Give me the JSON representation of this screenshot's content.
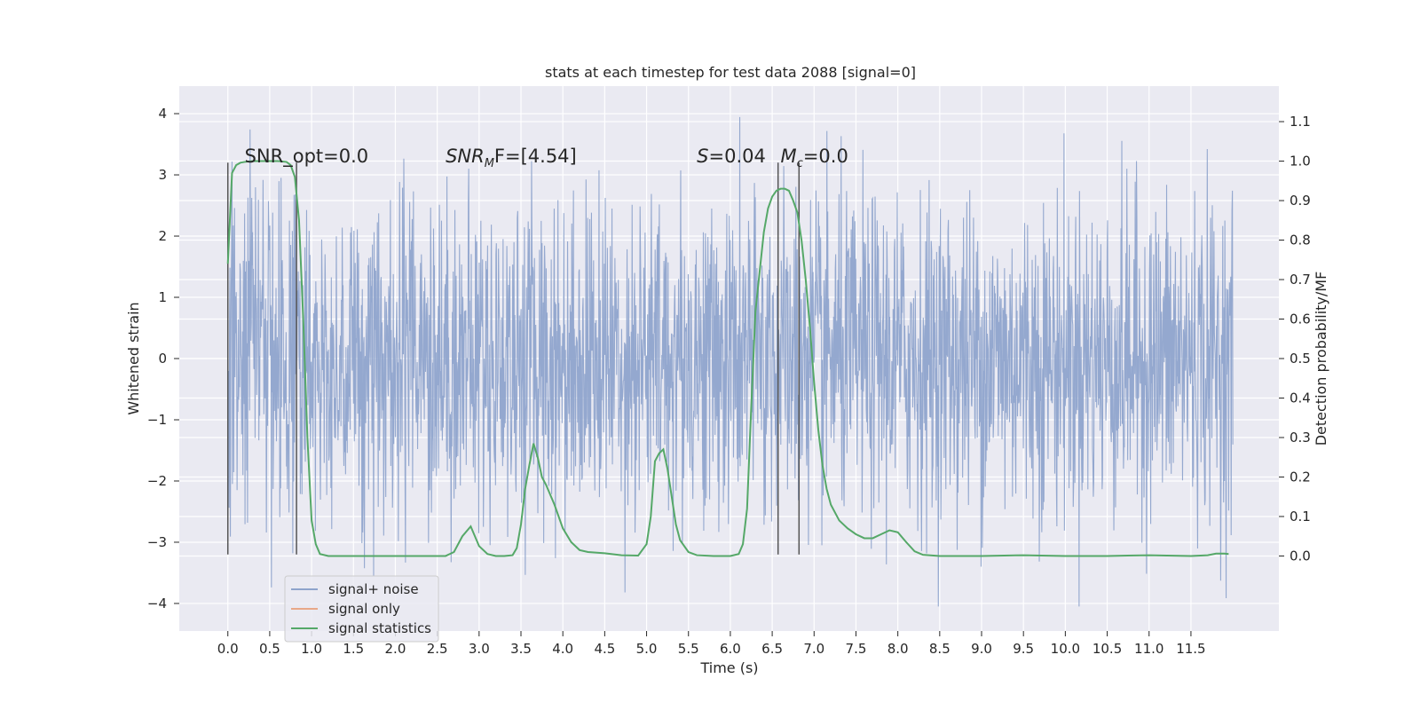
{
  "chart_data": {
    "type": "line",
    "title": "stats at each timestep for test data 2088 [signal=0]",
    "xlabel": "Time (s)",
    "ylabel_left": "Whitened strain",
    "ylabel_right": "Detection probability/MF",
    "xlim": [
      -0.58,
      12.55
    ],
    "ylim_left": [
      -4.45,
      4.45
    ],
    "ylim_right": [
      -0.19,
      1.19
    ],
    "x_ticks": [
      0.0,
      0.5,
      1.0,
      1.5,
      2.0,
      2.5,
      3.0,
      3.5,
      4.0,
      4.5,
      5.0,
      5.5,
      6.0,
      6.5,
      7.0,
      7.5,
      8.0,
      8.5,
      9.0,
      9.5,
      10.0,
      10.5,
      11.0,
      11.5
    ],
    "x_tick_labels": [
      "0.0",
      "0.5",
      "1.0",
      "1.5",
      "2.0",
      "2.5",
      "3.0",
      "3.5",
      "4.0",
      "4.5",
      "5.0",
      "5.5",
      "6.0",
      "6.5",
      "7.0",
      "7.5",
      "8.0",
      "8.5",
      "9.0",
      "9.5",
      "10.0",
      "10.5",
      "11.0",
      "11.5"
    ],
    "y_left_ticks": [
      4,
      3,
      2,
      1,
      0,
      -1,
      -2,
      -3,
      -4
    ],
    "y_left_tick_labels": [
      "4",
      "3",
      "2",
      "1",
      "0",
      "−1",
      "−2",
      "−3",
      "−4"
    ],
    "y_right_ticks": [
      1.1,
      1.0,
      0.9,
      0.8,
      0.7,
      0.6,
      0.5,
      0.4,
      0.3,
      0.2,
      0.1,
      0.0
    ],
    "y_right_tick_labels": [
      "1.1",
      "1.0",
      "0.9",
      "0.8",
      "0.7",
      "0.6",
      "0.5",
      "0.4",
      "0.3",
      "0.2",
      "0.1",
      "0.0"
    ],
    "grid": true,
    "legend_position": "lower-left",
    "series": [
      {
        "name": "signal+ noise",
        "axis": "left",
        "color": "#8fa4cc",
        "x_range": [
          0.0,
          12.0
        ],
        "envelope_typical": 1.3,
        "envelope_range": [
          -4.05,
          4.1
        ]
      },
      {
        "name": "signal only",
        "axis": "left",
        "color": "#e8a888",
        "x": [],
        "y": []
      },
      {
        "name": "signal statistics",
        "axis": "right",
        "color": "#55a868",
        "x": [
          0.0,
          0.05,
          0.1,
          0.15,
          0.2,
          0.3,
          0.4,
          0.5,
          0.6,
          0.7,
          0.75,
          0.8,
          0.85,
          0.9,
          0.95,
          1.0,
          1.05,
          1.1,
          1.2,
          1.5,
          2.0,
          2.5,
          2.6,
          2.7,
          2.8,
          2.9,
          3.0,
          3.1,
          3.2,
          3.3,
          3.4,
          3.45,
          3.5,
          3.55,
          3.6,
          3.65,
          3.7,
          3.75,
          3.8,
          3.9,
          4.0,
          4.1,
          4.2,
          4.3,
          4.5,
          4.7,
          4.9,
          5.0,
          5.05,
          5.1,
          5.15,
          5.2,
          5.25,
          5.3,
          5.35,
          5.4,
          5.5,
          5.6,
          5.8,
          6.0,
          6.1,
          6.15,
          6.2,
          6.25,
          6.3,
          6.35,
          6.4,
          6.45,
          6.5,
          6.55,
          6.6,
          6.65,
          6.7,
          6.75,
          6.8,
          6.85,
          6.9,
          6.95,
          7.0,
          7.05,
          7.1,
          7.15,
          7.2,
          7.3,
          7.4,
          7.5,
          7.6,
          7.7,
          7.8,
          7.9,
          8.0,
          8.1,
          8.2,
          8.3,
          8.5,
          9.0,
          9.5,
          10.0,
          10.5,
          11.0,
          11.5,
          11.7,
          11.8,
          11.9,
          11.95
        ],
        "y": [
          0.74,
          0.97,
          0.99,
          0.996,
          0.998,
          1.0,
          1.0,
          1.0,
          1.0,
          0.998,
          0.99,
          0.96,
          0.85,
          0.6,
          0.3,
          0.09,
          0.03,
          0.005,
          0.0,
          0.0,
          0.0,
          0.0,
          0.0,
          0.01,
          0.05,
          0.075,
          0.025,
          0.005,
          0.0,
          0.0,
          0.002,
          0.02,
          0.08,
          0.17,
          0.23,
          0.285,
          0.25,
          0.2,
          0.18,
          0.13,
          0.07,
          0.035,
          0.015,
          0.01,
          0.007,
          0.002,
          0.001,
          0.03,
          0.1,
          0.24,
          0.26,
          0.27,
          0.22,
          0.15,
          0.08,
          0.04,
          0.01,
          0.002,
          0.0,
          0.0,
          0.005,
          0.03,
          0.12,
          0.38,
          0.62,
          0.72,
          0.82,
          0.88,
          0.91,
          0.925,
          0.93,
          0.93,
          0.925,
          0.9,
          0.87,
          0.8,
          0.7,
          0.58,
          0.44,
          0.32,
          0.23,
          0.17,
          0.13,
          0.09,
          0.07,
          0.055,
          0.045,
          0.045,
          0.055,
          0.065,
          0.06,
          0.035,
          0.012,
          0.003,
          0.0,
          0.0,
          0.002,
          0.0,
          0.0,
          0.002,
          0.0,
          0.002,
          0.006,
          0.006,
          0.005
        ]
      }
    ],
    "vertical_lines": [
      {
        "x": 0.0,
        "y_range": [
          -3.2,
          3.2
        ]
      },
      {
        "x": 0.82,
        "y_range": [
          -3.2,
          3.2
        ]
      },
      {
        "x": 6.57,
        "y_range": [
          -3.2,
          3.2
        ]
      },
      {
        "x": 6.82,
        "y_range": [
          -3.2,
          3.2
        ]
      }
    ],
    "annotations": [
      {
        "id": "snr-opt",
        "x": 0.2,
        "y": 3.2,
        "text": "SNR_opt=0.0"
      },
      {
        "id": "snr-mf",
        "x": 2.6,
        "y": 3.2,
        "parts": [
          "SNR",
          "M",
          "F=[4.54]"
        ]
      },
      {
        "id": "s-value",
        "x": 5.6,
        "y": 3.2,
        "parts": [
          "S",
          "=0.04"
        ]
      },
      {
        "id": "mc-value",
        "x": 6.6,
        "y": 3.2,
        "parts": [
          "M",
          "c",
          "=0.0"
        ]
      }
    ]
  }
}
